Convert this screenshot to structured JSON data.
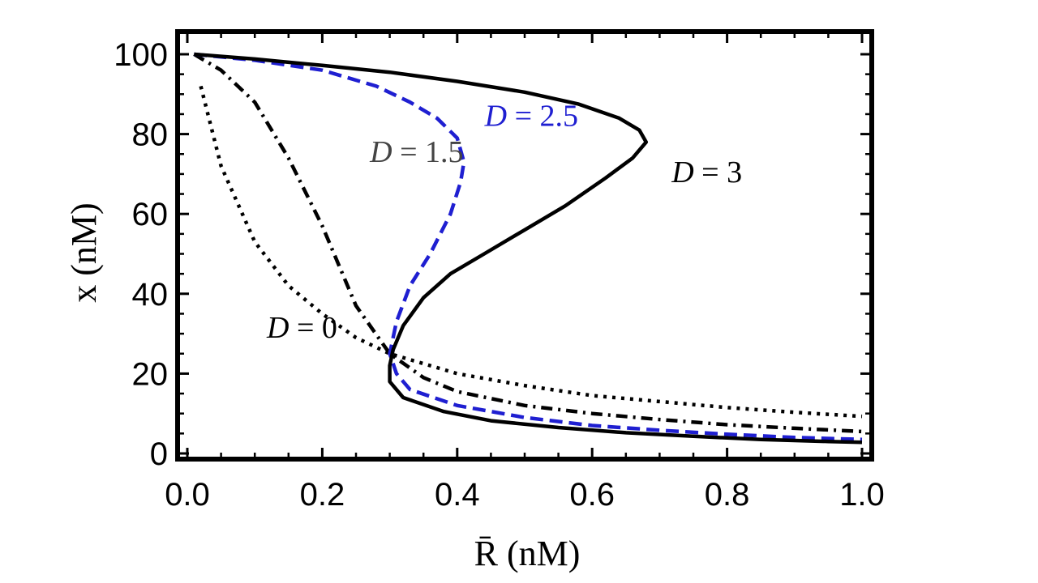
{
  "chart_data": {
    "type": "line",
    "xlabel": "R̄ (nM)",
    "ylabel": "x (nM)",
    "xlim": [
      0,
      1
    ],
    "ylim": [
      0,
      100
    ],
    "x_ticks": [
      "0.0",
      "0.2",
      "0.4",
      "0.6",
      "0.8",
      "1.0"
    ],
    "y_ticks": [
      "0",
      "20",
      "40",
      "60",
      "80",
      "100"
    ],
    "grid": false,
    "legend": "none",
    "series": [
      {
        "name": "D = 0",
        "color": "#000000",
        "style": "dotted",
        "label_color": "#000000",
        "points": [
          [
            0.02,
            92
          ],
          [
            0.05,
            72
          ],
          [
            0.1,
            53
          ],
          [
            0.15,
            42
          ],
          [
            0.2,
            35
          ],
          [
            0.25,
            29
          ],
          [
            0.3,
            25
          ],
          [
            0.4,
            20
          ],
          [
            0.5,
            17
          ],
          [
            0.6,
            14.5
          ],
          [
            0.7,
            13
          ],
          [
            0.8,
            11.5
          ],
          [
            0.9,
            10.3
          ],
          [
            1.0,
            9.3
          ]
        ]
      },
      {
        "name": "D = 1.5",
        "color": "#000000",
        "style": "dashdot",
        "label_color": "#444444",
        "points": [
          [
            0.01,
            100
          ],
          [
            0.05,
            96
          ],
          [
            0.1,
            88
          ],
          [
            0.15,
            74
          ],
          [
            0.2,
            57
          ],
          [
            0.25,
            37
          ],
          [
            0.3,
            25
          ],
          [
            0.35,
            19
          ],
          [
            0.4,
            15.5
          ],
          [
            0.5,
            12
          ],
          [
            0.6,
            10
          ],
          [
            0.7,
            8.5
          ],
          [
            0.8,
            7.2
          ],
          [
            0.9,
            6.3
          ],
          [
            1.0,
            5.5
          ]
        ]
      },
      {
        "name": "D = 2.5",
        "color": "#1f1fd1",
        "style": "dashed",
        "label_color": "#1f1fd1",
        "points": [
          [
            0.01,
            100
          ],
          [
            0.1,
            98.5
          ],
          [
            0.2,
            96
          ],
          [
            0.28,
            92
          ],
          [
            0.33,
            88
          ],
          [
            0.37,
            84
          ],
          [
            0.4,
            79
          ],
          [
            0.41,
            73
          ],
          [
            0.405,
            68
          ],
          [
            0.39,
            60
          ],
          [
            0.36,
            50
          ],
          [
            0.33,
            42
          ],
          [
            0.31,
            33
          ],
          [
            0.3,
            25
          ],
          [
            0.31,
            20
          ],
          [
            0.33,
            16
          ],
          [
            0.4,
            12
          ],
          [
            0.5,
            9
          ],
          [
            0.6,
            7
          ],
          [
            0.7,
            5.8
          ],
          [
            0.8,
            4.8
          ],
          [
            0.9,
            4.0
          ],
          [
            1.0,
            3.5
          ]
        ]
      },
      {
        "name": "D = 3",
        "color": "#000000",
        "style": "solid",
        "label_color": "#000000",
        "points": [
          [
            0.01,
            100
          ],
          [
            0.1,
            98.8
          ],
          [
            0.2,
            97.2
          ],
          [
            0.3,
            95.5
          ],
          [
            0.4,
            93.2
          ],
          [
            0.5,
            90.5
          ],
          [
            0.58,
            87.5
          ],
          [
            0.64,
            84
          ],
          [
            0.67,
            81
          ],
          [
            0.68,
            78
          ],
          [
            0.66,
            74
          ],
          [
            0.62,
            69
          ],
          [
            0.56,
            62
          ],
          [
            0.5,
            56
          ],
          [
            0.44,
            50
          ],
          [
            0.39,
            45
          ],
          [
            0.35,
            39
          ],
          [
            0.32,
            32
          ],
          [
            0.305,
            26
          ],
          [
            0.3,
            22
          ],
          [
            0.3,
            18
          ],
          [
            0.32,
            14
          ],
          [
            0.38,
            10.5
          ],
          [
            0.45,
            8.2
          ],
          [
            0.55,
            6.5
          ],
          [
            0.65,
            5.2
          ],
          [
            0.75,
            4.3
          ],
          [
            0.85,
            3.5
          ],
          [
            0.95,
            3.0
          ],
          [
            1.0,
            2.8
          ]
        ]
      }
    ],
    "annotations": [
      {
        "text": "D = 0",
        "series": 0,
        "x": 0.17,
        "y": 29
      },
      {
        "text": "D = 1.5",
        "series": 1,
        "x": 0.34,
        "y": 73
      },
      {
        "text": "D = 2.5",
        "series": 2,
        "x": 0.51,
        "y": 82
      },
      {
        "text": "D = 3",
        "series": 3,
        "x": 0.77,
        "y": 68
      }
    ]
  }
}
